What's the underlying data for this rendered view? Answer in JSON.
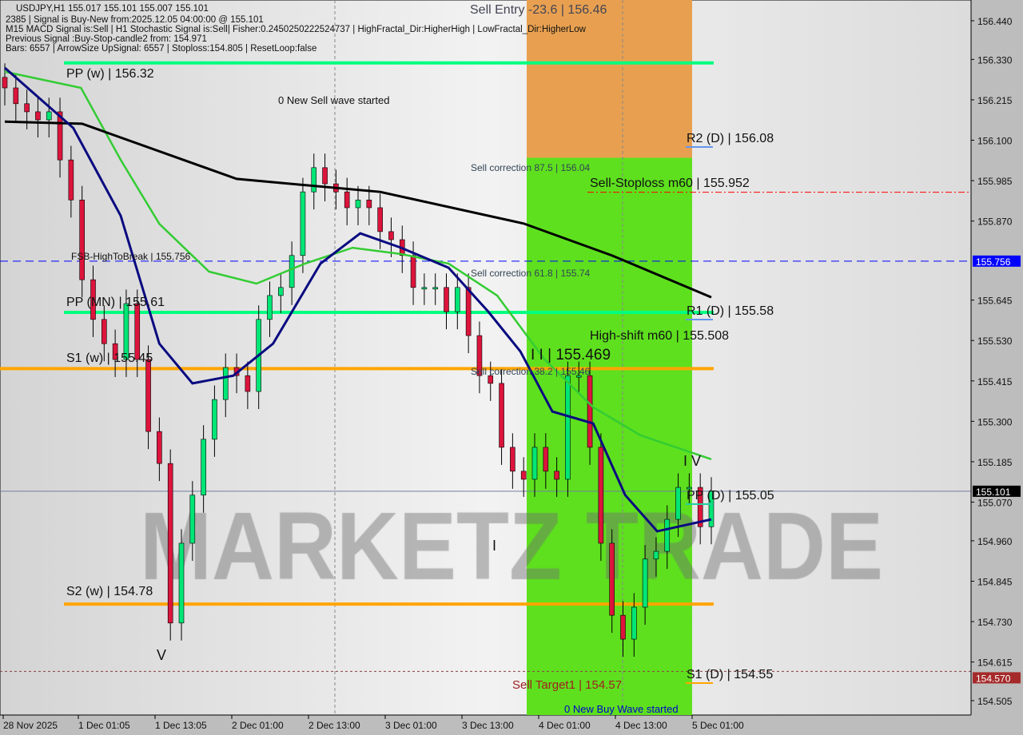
{
  "header": {
    "symbol_line": "USDJPY,H1  155.017 155.101 155.007 155.101",
    "signal_line": "2385 | Signal is Buy-New from:2025.12.05 04:00:00 @ 155.101",
    "indicators_line": "M15 MACD Signal is:Sell | H1 Stochastic Signal is:Sell| Fisher:0.2450250222524737 | HighFractal_Dir:HigherHigh | LowFractal_Dir:HigherLow",
    "previous_signal_line": "Previous Signal :Buy-Stop-candle2 from: 154.971",
    "bars_line": "Bars: 6557 | ArrowSize UpSignal: 6557 | Stoploss:154.805 | ResetLoop:false"
  },
  "watermark": "MARKETZ TRADE",
  "chart_data": {
    "type": "candlestick",
    "symbol": "USDJPY",
    "timeframe": "H1",
    "ylim": [
      154.47,
      156.5
    ],
    "y_ticks": [
      "156.440",
      "156.330",
      "156.215",
      "156.100",
      "155.985",
      "155.870",
      "155.756",
      "155.645",
      "155.530",
      "155.415",
      "155.300",
      "155.185",
      "155.101",
      "155.070",
      "154.960",
      "154.845",
      "154.730",
      "154.615",
      "154.570",
      "154.505"
    ],
    "x_ticks": [
      "28 Nov 2025",
      "1 Dec 01:05",
      "1 Dec 13:05",
      "2 Dec 01:00",
      "2 Dec 13:00",
      "3 Dec 01:00",
      "3 Dec 13:00",
      "4 Dec 01:00",
      "4 Dec 13:00",
      "5 Dec 01:00"
    ],
    "closes": [
      156.249,
      156.204,
      156.181,
      156.158,
      156.181,
      156.044,
      155.93,
      155.703,
      155.59,
      155.521,
      155.476,
      155.635,
      155.476,
      155.271,
      155.18,
      154.726,
      154.953,
      155.09,
      155.249,
      155.362,
      155.453,
      155.43,
      155.385,
      155.59,
      155.658,
      155.681,
      155.772,
      155.953,
      156.022,
      155.976,
      155.953,
      155.908,
      155.93,
      155.908,
      155.84,
      155.817,
      155.772,
      155.681,
      155.681,
      155.681,
      155.612,
      155.681,
      155.544,
      155.43,
      155.408,
      155.226,
      155.158,
      155.135,
      155.226,
      155.158,
      155.135,
      155.43,
      155.43,
      155.226,
      154.953,
      154.748,
      154.68,
      154.771,
      154.908,
      154.93,
      155.021,
      155.112,
      155.112,
      155.0,
      155.101
    ],
    "ma_black": [
      [
        0,
        156.153
      ],
      [
        7,
        156.147
      ],
      [
        21,
        155.99
      ],
      [
        34,
        155.953
      ],
      [
        47,
        155.863
      ],
      [
        55,
        155.772
      ],
      [
        64,
        155.653
      ]
    ],
    "ma_blue": [
      [
        0,
        156.306
      ],
      [
        6.2,
        156.135
      ],
      [
        10.5,
        155.885
      ],
      [
        14,
        155.521
      ],
      [
        17,
        155.408
      ],
      [
        20.7,
        155.43
      ],
      [
        24.3,
        155.521
      ],
      [
        28.6,
        155.749
      ],
      [
        32.2,
        155.835
      ],
      [
        35.9,
        155.794
      ],
      [
        40.2,
        155.737
      ],
      [
        43.8,
        155.612
      ],
      [
        46.7,
        155.499
      ],
      [
        49.6,
        155.328
      ],
      [
        53.3,
        155.294
      ],
      [
        56.2,
        155.09
      ],
      [
        59.1,
        154.987
      ],
      [
        64,
        155.021
      ]
    ],
    "ma_green": [
      [
        0,
        156.295
      ],
      [
        6.9,
        156.249
      ],
      [
        10.5,
        156.044
      ],
      [
        14,
        155.862
      ],
      [
        18.5,
        155.726
      ],
      [
        22.8,
        155.692
      ],
      [
        27.2,
        155.749
      ],
      [
        31.5,
        155.794
      ],
      [
        35.9,
        155.776
      ],
      [
        40.2,
        155.749
      ],
      [
        44.6,
        155.658
      ],
      [
        48.9,
        155.476
      ],
      [
        53.3,
        155.34
      ],
      [
        57.6,
        155.26
      ],
      [
        64,
        155.192
      ]
    ],
    "current_price": "155.101",
    "levels": [
      {
        "label": "PP (w) | 156.32",
        "price": 156.32,
        "color": "#00ff7f"
      },
      {
        "label": "PP (MN) | 155.61",
        "price": 155.61,
        "color": "#00ff7f"
      },
      {
        "label": "S1 (w) | 155.45",
        "price": 155.45,
        "color": "#ffa500"
      },
      {
        "label": "S2 (w) | 154.78",
        "price": 154.78,
        "color": "#ffa500"
      },
      {
        "label": "FSB-HighToBreak | 155.756",
        "price": 155.756,
        "color": "#0000ff"
      },
      {
        "label": "Sell-Stoploss m60 | 155.952",
        "price": 155.952,
        "color": "#ff0000"
      },
      {
        "label": "Sell Target1 | 154.57",
        "price": 154.57,
        "color": "#8b1a1a"
      }
    ],
    "daily_pivots": [
      {
        "label": "R2 (D) | 156.08",
        "price": 156.08
      },
      {
        "label": "R1 (D) | 155.58",
        "price": 155.58
      },
      {
        "label": "PP (D) | 155.05",
        "price": 155.05
      },
      {
        "label": "S1 (D) | 154.55",
        "price": 154.55
      }
    ],
    "annotations": {
      "sell_entry": "Sell Entry -23.6 | 156.46",
      "corr_875": "Sell correction 87.5 | 156.04",
      "corr_618": "Sell correction 61.8 | 155.74",
      "corr_382": "Sell correction 38.2 | 155.46",
      "high_shift": "High-shift m60 | 155.508",
      "wave_ii": "I I | 155.469",
      "new_sell_wave": "0 New Sell wave started",
      "new_buy_wave": "0 New Buy Wave started",
      "wave_v": "V",
      "wave_i": "I",
      "wave_iv": "I V"
    },
    "colors": {
      "bull": "#00e676",
      "bear": "#dc143c",
      "zone_green": "#5ee01e",
      "zone_orange": "#e8a050",
      "price_tag_current": "#000000",
      "price_tag_fsb": "#0000ff",
      "price_tag_target": "#a52a2a"
    }
  }
}
